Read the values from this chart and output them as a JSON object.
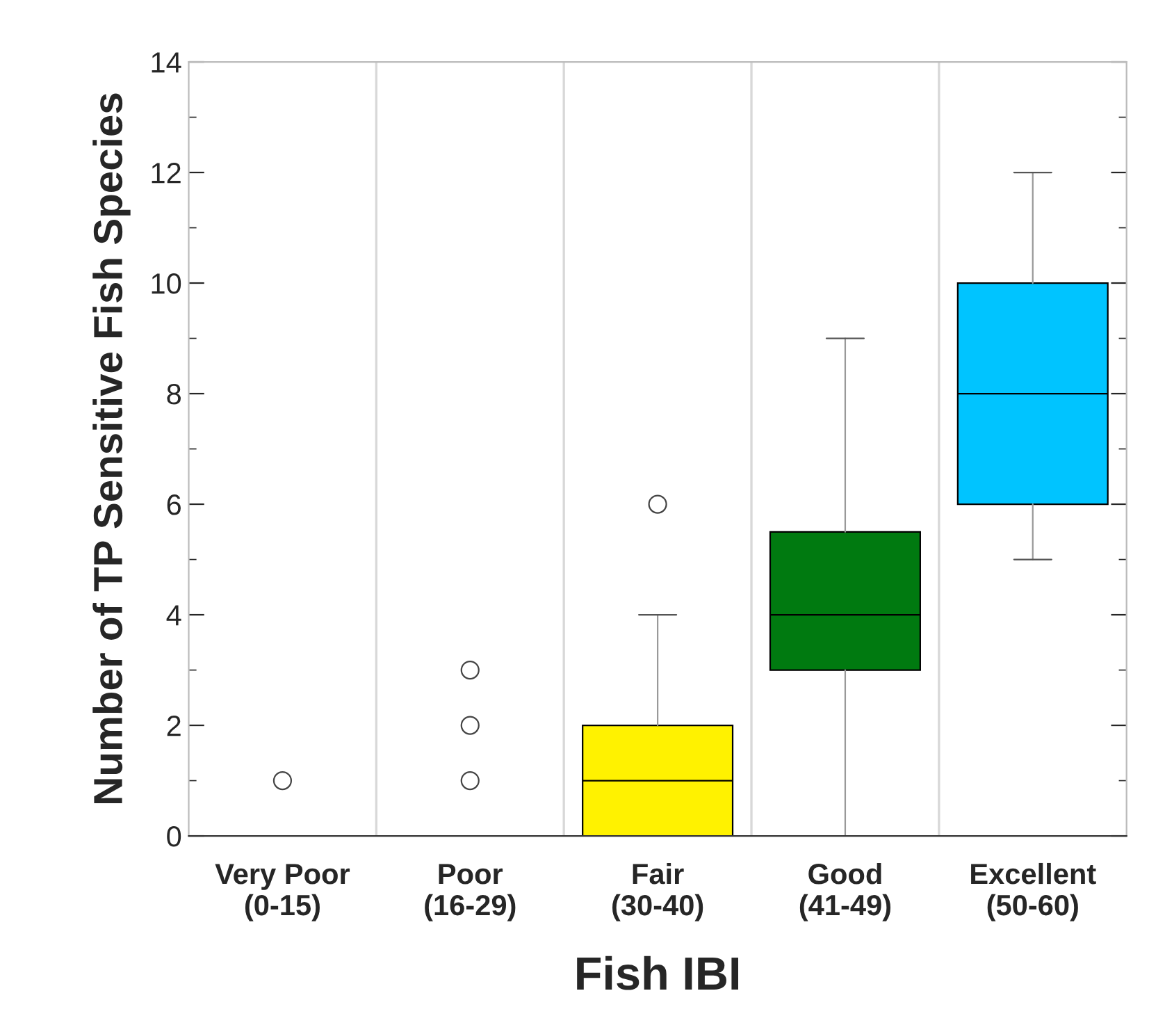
{
  "chart_data": {
    "type": "box",
    "xlabel": "Fish IBI",
    "ylabel": "Number of TP Sensitive Fish Species",
    "categories": [
      "Very Poor\n(0-15)",
      "Poor\n(16-29)",
      "Fair\n(30-40)",
      "Good\n(41-49)",
      "Excellent\n(50-60)"
    ],
    "boxes": [
      {
        "low": 0,
        "q1": 0,
        "median": 0,
        "q3": 0,
        "high": 0,
        "outliers": [
          1
        ]
      },
      {
        "low": 0,
        "q1": 0,
        "median": 0,
        "q3": 0,
        "high": 0,
        "outliers": [
          1,
          2,
          3
        ]
      },
      {
        "low": 0,
        "q1": 0,
        "median": 1,
        "q3": 2,
        "high": 4,
        "outliers": [
          6
        ]
      },
      {
        "low": 0,
        "q1": 3,
        "median": 4,
        "q3": 5.5,
        "high": 9
      },
      {
        "low": 5,
        "q1": 6,
        "median": 8,
        "q3": 10,
        "high": 12
      }
    ],
    "colors": [
      "#000000",
      "#000000",
      "#fff200",
      "#007a10",
      "#00c4ff"
    ],
    "ylim": [
      0,
      14
    ],
    "yticks": [
      0,
      2,
      4,
      6,
      8,
      10,
      12,
      14
    ],
    "grid": "x",
    "legend": false
  }
}
